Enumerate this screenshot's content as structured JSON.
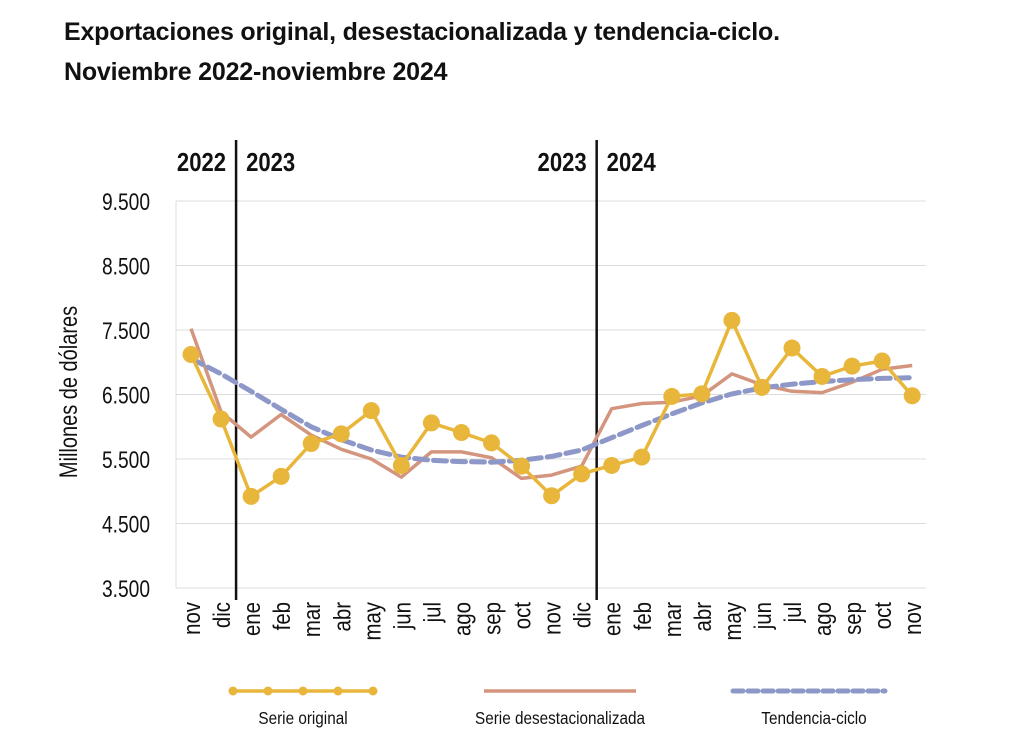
{
  "title": "Exportaciones original, desestacionalizada y tendencia-ciclo.",
  "subtitle": "Noviembre 2022-noviembre 2024",
  "chart_data": {
    "type": "line",
    "ylabel": "Millones de dólares",
    "ylim": [
      3500,
      9500
    ],
    "yticks": [
      3500,
      4500,
      5500,
      6500,
      7500,
      8500,
      9500
    ],
    "ytick_labels": [
      "3.500",
      "4.500",
      "5.500",
      "6.500",
      "7.500",
      "8.500",
      "9.500"
    ],
    "grid": "horizontal",
    "legend_position": "bottom",
    "categories": [
      "nov",
      "dic",
      "ene",
      "feb",
      "mar",
      "abr",
      "may",
      "jun",
      "jul",
      "ago",
      "sep",
      "oct",
      "nov",
      "dic",
      "ene",
      "feb",
      "mar",
      "abr",
      "may",
      "jun",
      "jul",
      "ago",
      "sep",
      "oct",
      "nov"
    ],
    "year_labels": [
      {
        "text": "2022",
        "side": "left",
        "at_index": 2
      },
      {
        "text": "2023",
        "side": "right",
        "at_index": 2
      },
      {
        "text": "2023",
        "side": "left",
        "at_index": 14
      },
      {
        "text": "2024",
        "side": "right",
        "at_index": 14
      }
    ],
    "series": [
      {
        "name": "Serie original",
        "style": "line-markers",
        "color": "#E8B63A",
        "values": [
          7120,
          6120,
          4920,
          5230,
          5740,
          5890,
          6250,
          5400,
          6060,
          5910,
          5750,
          5390,
          4930,
          5270,
          5400,
          5530,
          6470,
          6510,
          7650,
          6610,
          7220,
          6780,
          6940,
          7020,
          6480
        ]
      },
      {
        "name": "Serie desestacionalizada",
        "style": "solid",
        "color": "#D3957E",
        "values": [
          7520,
          6230,
          5840,
          6190,
          5870,
          5650,
          5500,
          5220,
          5610,
          5610,
          5520,
          5200,
          5250,
          5390,
          6280,
          6360,
          6380,
          6480,
          6820,
          6650,
          6550,
          6530,
          6690,
          6890,
          6950
        ]
      },
      {
        "name": "Tendencia-ciclo",
        "style": "dashed",
        "color": "#8E98C8",
        "values": [
          7060,
          6820,
          6550,
          6270,
          6000,
          5800,
          5640,
          5530,
          5480,
          5460,
          5450,
          5480,
          5540,
          5640,
          5830,
          6020,
          6200,
          6370,
          6510,
          6600,
          6660,
          6700,
          6730,
          6750,
          6760
        ]
      }
    ]
  }
}
